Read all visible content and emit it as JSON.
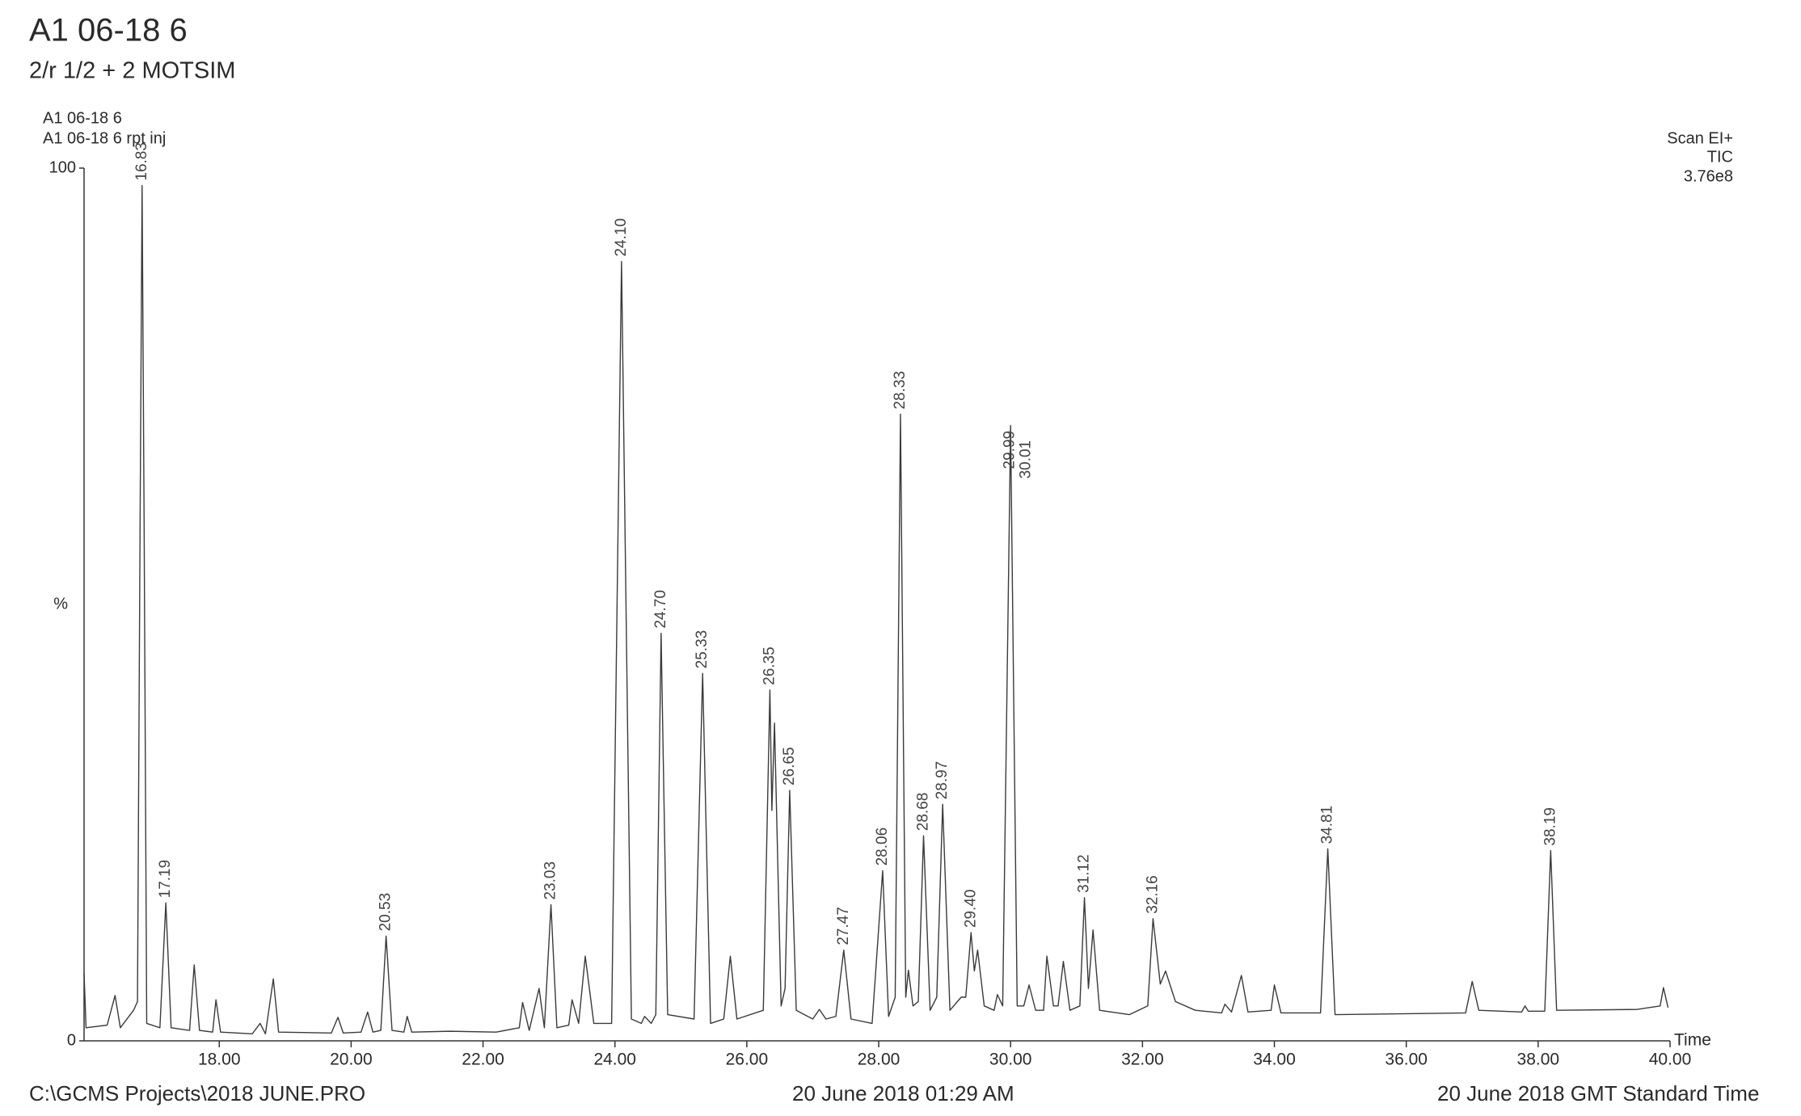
{
  "chart_data": {
    "type": "line",
    "title": "A1 06-18 6",
    "subtitle": "2/r 1/2 + 2 MOTSIM",
    "sample_labels": [
      "A1 06-18 6",
      "A1 06-18 6 rpt inj"
    ],
    "annotations": [
      "Scan  EI+",
      "TIC",
      "3.76e8"
    ],
    "ylabel": "%",
    "xlabel": "Time",
    "xlim": [
      15.95,
      40
    ],
    "xticks": [
      {
        "value": 18,
        "label": "18.00"
      },
      {
        "value": 20,
        "label": "20.00"
      },
      {
        "value": 22,
        "label": "22.00"
      },
      {
        "value": 24,
        "label": "24.00"
      },
      {
        "value": 26,
        "label": "26.00"
      },
      {
        "value": 28,
        "label": "28.00"
      },
      {
        "value": 30,
        "label": "30.00"
      },
      {
        "value": 32,
        "label": "32.00"
      },
      {
        "value": 34,
        "label": "34.00"
      },
      {
        "value": 36,
        "label": "36.00"
      },
      {
        "value": 38,
        "label": "38.00"
      },
      {
        "value": 40,
        "label": "40.00"
      }
    ],
    "ylim": [
      0,
      100
    ],
    "yticks": [
      0,
      100
    ],
    "series": [
      {
        "color": "#3a3a3a",
        "x": [
          15.95,
          15.98,
          16.3,
          16.42,
          16.5,
          16.7,
          16.76,
          16.8,
          16.83,
          16.86,
          16.9,
          17.1,
          17.19,
          17.27,
          17.55,
          17.62,
          17.7,
          17.9,
          17.95,
          18.02,
          18.5,
          18.62,
          18.7,
          18.82,
          18.9,
          19.7,
          19.8,
          19.88,
          20.15,
          20.25,
          20.33,
          20.45,
          20.53,
          20.62,
          20.8,
          20.85,
          20.92,
          21.5,
          22.2,
          22.55,
          22.6,
          22.7,
          22.85,
          22.93,
          23.03,
          23.12,
          23.3,
          23.35,
          23.45,
          23.55,
          23.68,
          23.95,
          24.1,
          24.25,
          24.4,
          24.45,
          24.55,
          24.62,
          24.7,
          24.8,
          25.2,
          25.33,
          25.45,
          25.65,
          25.75,
          25.85,
          26.25,
          26.35,
          26.38,
          26.42,
          26.52,
          26.58,
          26.65,
          26.75,
          27.0,
          27.1,
          27.2,
          27.35,
          27.47,
          27.58,
          27.9,
          28.06,
          28.15,
          28.25,
          28.33,
          28.41,
          28.45,
          28.52,
          28.6,
          28.68,
          28.78,
          28.88,
          28.97,
          29.08,
          29.25,
          29.32,
          29.4,
          29.45,
          29.5,
          29.6,
          29.75,
          29.8,
          29.88,
          30.0,
          30.1,
          30.2,
          30.28,
          30.38,
          30.5,
          30.55,
          30.65,
          30.72,
          30.8,
          30.9,
          31.05,
          31.12,
          31.18,
          31.25,
          31.35,
          31.8,
          32.08,
          32.16,
          32.27,
          32.35,
          32.5,
          32.8,
          33.2,
          33.25,
          33.35,
          33.5,
          33.6,
          33.95,
          34.0,
          34.1,
          34.7,
          34.81,
          34.92,
          36.9,
          37.0,
          37.1,
          37.75,
          37.8,
          37.85,
          38.1,
          38.19,
          38.28,
          39.5,
          39.85,
          39.9,
          39.97
        ],
        "values": [
          7.7,
          1.5,
          1.8,
          5.2,
          1.5,
          3.5,
          4.5,
          60,
          98,
          60,
          2.0,
          1.5,
          15.8,
          1.5,
          1.2,
          8.7,
          1.2,
          1.0,
          4.7,
          1.0,
          0.8,
          2.0,
          0.8,
          7.1,
          1.0,
          0.9,
          2.7,
          0.9,
          1.0,
          3.3,
          1.0,
          1.2,
          12.0,
          1.2,
          1.0,
          2.8,
          1.0,
          1.1,
          1.0,
          1.5,
          4.4,
          1.2,
          6.0,
          1.5,
          15.6,
          1.5,
          1.8,
          4.7,
          2.0,
          9.7,
          2.0,
          2.0,
          89.3,
          2.5,
          2.0,
          2.8,
          2.0,
          3.0,
          46.7,
          3.0,
          2.5,
          42.1,
          2.0,
          2.5,
          9.7,
          2.5,
          3.5,
          40.2,
          26.4,
          36.4,
          4.0,
          6,
          28.7,
          3.5,
          2.5,
          3.6,
          2.5,
          2.8,
          10.4,
          2.5,
          2.0,
          19.5,
          2.8,
          5,
          71.8,
          5,
          8.1,
          4,
          4.5,
          23.5,
          3.5,
          5,
          27.1,
          3.5,
          5.0,
          5,
          12.4,
          8,
          10.4,
          4,
          3.5,
          5.3,
          4,
          70.5,
          4.0,
          4,
          6.4,
          3.5,
          3.5,
          9.7,
          4,
          4,
          9.1,
          3.5,
          4,
          16.4,
          6,
          12.7,
          3.5,
          3,
          4,
          14.0,
          6.5,
          8.0,
          4.5,
          3.5,
          3.2,
          4.2,
          3.3,
          7.5,
          3.3,
          3.5,
          6.4,
          3.2,
          3.2,
          22.0,
          3.0,
          3.2,
          6.8,
          3.5,
          3.3,
          4.0,
          3.4,
          3.4,
          21.8,
          3.5,
          3.6,
          4.0,
          6.1,
          3.8
        ]
      }
    ],
    "peak_labels": [
      16.83,
      17.19,
      20.53,
      23.03,
      {
        "value": 24.1,
        "label": "24.10"
      },
      {
        "value": 24.7,
        "label": "24.70"
      },
      25.33,
      26.35,
      26.65,
      27.47,
      28.06,
      28.33,
      28.68,
      28.97,
      {
        "value": 29.4,
        "label": "29.40"
      },
      29.99,
      30.01,
      31.12,
      32.16,
      34.81,
      38.19
    ],
    "footer": {
      "left": "C:\\GCMS Projects\\2018 JUNE.PRO",
      "center": "20 June 2018 01:29 AM",
      "right": "20 June 2018  GMT Standard Time"
    }
  }
}
